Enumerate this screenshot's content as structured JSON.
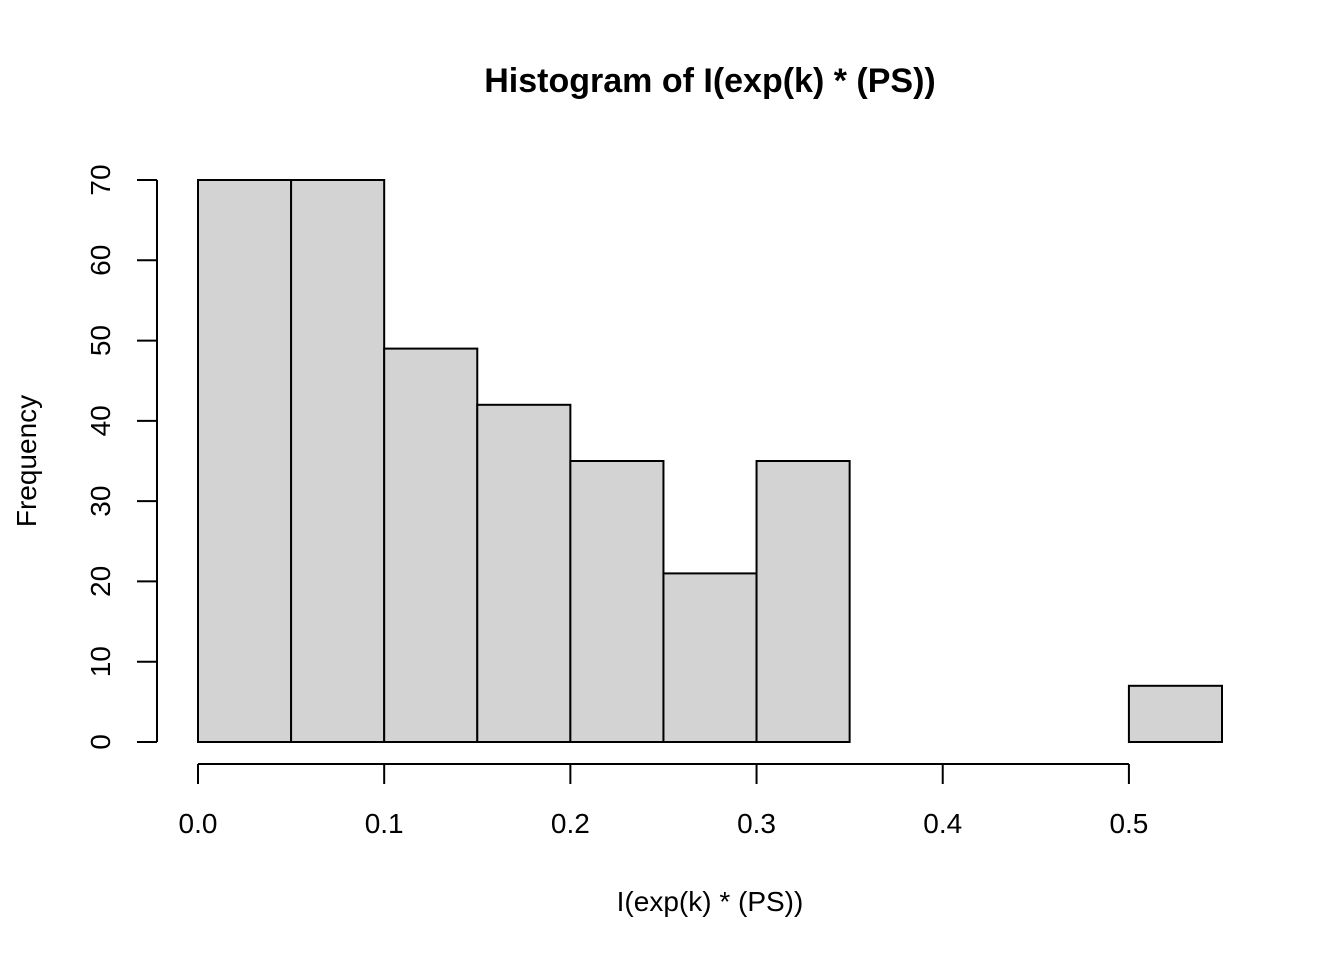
{
  "chart_data": {
    "type": "bar",
    "title": "Histogram of I(exp(k) * (PS))",
    "xlabel": "I(exp(k) * (PS))",
    "ylabel": "Frequency",
    "bins": [
      {
        "x0": 0.0,
        "x1": 0.05,
        "count": 70
      },
      {
        "x0": 0.05,
        "x1": 0.1,
        "count": 70
      },
      {
        "x0": 0.1,
        "x1": 0.15,
        "count": 49
      },
      {
        "x0": 0.15,
        "x1": 0.2,
        "count": 42
      },
      {
        "x0": 0.2,
        "x1": 0.25,
        "count": 35
      },
      {
        "x0": 0.25,
        "x1": 0.3,
        "count": 21
      },
      {
        "x0": 0.3,
        "x1": 0.35,
        "count": 35
      },
      {
        "x0": 0.35,
        "x1": 0.4,
        "count": 0
      },
      {
        "x0": 0.4,
        "x1": 0.45,
        "count": 0
      },
      {
        "x0": 0.45,
        "x1": 0.5,
        "count": 0
      },
      {
        "x0": 0.5,
        "x1": 0.55,
        "count": 7
      }
    ],
    "xlim": [
      0.0,
      0.55
    ],
    "ylim": [
      0,
      70
    ],
    "x_ticks": [
      0.0,
      0.1,
      0.2,
      0.3,
      0.4,
      0.5
    ],
    "x_tick_labels": [
      "0.0",
      "0.1",
      "0.2",
      "0.3",
      "0.4",
      "0.5"
    ],
    "y_ticks": [
      0,
      10,
      20,
      30,
      40,
      50,
      60,
      70
    ],
    "y_tick_labels": [
      "0",
      "10",
      "20",
      "30",
      "40",
      "50",
      "60",
      "70"
    ],
    "bar_fill": "#d3d3d3",
    "bar_stroke": "#000000",
    "grid": false,
    "legend": "none"
  }
}
